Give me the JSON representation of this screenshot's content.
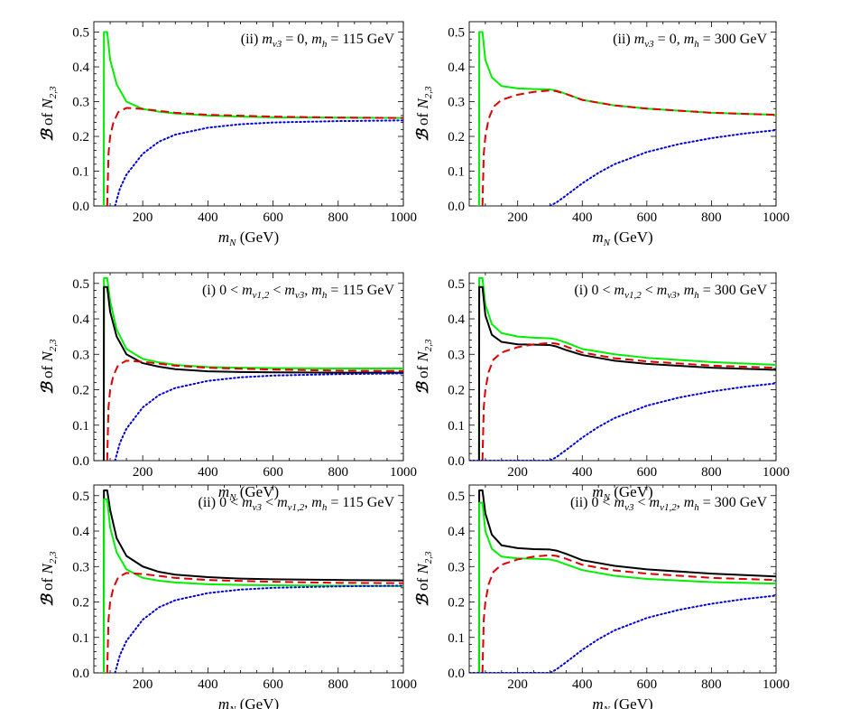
{
  "chart_data": [
    {
      "type": "line",
      "label_prefix": "(ii)",
      "annotation_math": "m_{ν3} = 0,",
      "annotation_mass": "m_h = 115 GeV",
      "xlabel": "m_N (GeV)",
      "ylabel": "ℬ of N_{2,3}",
      "xlim": [
        50,
        1000
      ],
      "ylim": [
        0,
        0.53
      ],
      "xticks": [
        200,
        400,
        600,
        800,
        1000
      ],
      "yticks": [
        0.0,
        0.1,
        0.2,
        0.3,
        0.4,
        0.5
      ],
      "series": [
        {
          "name": "green",
          "color": "#00ee00",
          "style": "solid",
          "x": [
            80.4,
            81,
            85,
            91,
            100,
            120,
            150,
            200,
            250,
            300,
            400,
            500,
            600,
            800,
            1000
          ],
          "y": [
            0,
            0.5,
            0.5,
            0.5,
            0.42,
            0.35,
            0.3,
            0.279,
            0.271,
            0.266,
            0.26,
            0.257,
            0.255,
            0.254,
            0.253
          ]
        },
        {
          "name": "red-dashed",
          "color": "#dd0000",
          "style": "dashed",
          "x": [
            91,
            95,
            100,
            110,
            125,
            150,
            200,
            300,
            400,
            600,
            800,
            1000
          ],
          "y": [
            0,
            0.15,
            0.2,
            0.24,
            0.27,
            0.282,
            0.279,
            0.268,
            0.262,
            0.257,
            0.254,
            0.253
          ]
        },
        {
          "name": "blue-dotted",
          "color": "#0000dd",
          "style": "dotted",
          "x": [
            115,
            130,
            150,
            200,
            250,
            300,
            400,
            500,
            600,
            800,
            1000
          ],
          "y": [
            0,
            0.05,
            0.09,
            0.15,
            0.185,
            0.205,
            0.225,
            0.235,
            0.24,
            0.244,
            0.246
          ]
        }
      ]
    },
    {
      "type": "line",
      "label_prefix": "(ii)",
      "annotation_math": "m_{ν3} = 0,",
      "annotation_mass": "m_h = 300 GeV",
      "xlabel": "m_N (GeV)",
      "ylabel": "ℬ of N_{2,3}",
      "xlim": [
        50,
        1000
      ],
      "ylim": [
        0,
        0.53
      ],
      "xticks": [
        200,
        400,
        600,
        800,
        1000
      ],
      "yticks": [
        0.0,
        0.1,
        0.2,
        0.3,
        0.4,
        0.5
      ],
      "series": [
        {
          "name": "green",
          "color": "#00ee00",
          "style": "solid",
          "x": [
            80.4,
            81,
            85,
            91,
            100,
            120,
            150,
            200,
            250,
            300,
            320,
            350,
            400,
            500,
            600,
            800,
            1000
          ],
          "y": [
            0,
            0.5,
            0.5,
            0.5,
            0.42,
            0.37,
            0.345,
            0.338,
            0.336,
            0.335,
            0.332,
            0.322,
            0.305,
            0.289,
            0.28,
            0.268,
            0.262
          ]
        },
        {
          "name": "red-dashed",
          "color": "#dd0000",
          "style": "dashed",
          "x": [
            91,
            95,
            100,
            110,
            125,
            150,
            200,
            250,
            300,
            320,
            350,
            400,
            500,
            600,
            800,
            1000
          ],
          "y": [
            0,
            0.15,
            0.2,
            0.25,
            0.285,
            0.305,
            0.32,
            0.328,
            0.332,
            0.33,
            0.322,
            0.305,
            0.289,
            0.28,
            0.268,
            0.262
          ]
        },
        {
          "name": "blue-dotted",
          "color": "#0000dd",
          "style": "dotted",
          "x": [
            300,
            320,
            350,
            400,
            450,
            500,
            600,
            700,
            800,
            900,
            1000
          ],
          "y": [
            0,
            0.01,
            0.03,
            0.065,
            0.095,
            0.12,
            0.155,
            0.178,
            0.195,
            0.208,
            0.218
          ]
        }
      ]
    },
    {
      "type": "line",
      "label_prefix": "(i)",
      "annotation_math": "0 < m_{ν1,2} < m_{ν3},",
      "annotation_mass": "m_h = 115 GeV",
      "xlabel": "m_N (GeV)",
      "ylabel": "ℬ of N_{2,3}",
      "xlim": [
        50,
        1000
      ],
      "ylim": [
        0,
        0.53
      ],
      "xticks": [
        200,
        400,
        600,
        800,
        1000
      ],
      "yticks": [
        0.0,
        0.1,
        0.2,
        0.3,
        0.4,
        0.5
      ],
      "series": [
        {
          "name": "green",
          "color": "#00ee00",
          "style": "solid",
          "x": [
            80.4,
            81,
            85,
            91,
            100,
            120,
            150,
            200,
            250,
            300,
            400,
            500,
            600,
            800,
            1000
          ],
          "y": [
            0,
            0.515,
            0.515,
            0.515,
            0.45,
            0.37,
            0.315,
            0.287,
            0.277,
            0.27,
            0.264,
            0.262,
            0.261,
            0.26,
            0.26
          ]
        },
        {
          "name": "black",
          "color": "#000000",
          "style": "solid",
          "x": [
            80.4,
            81,
            85,
            91,
            100,
            120,
            150,
            200,
            250,
            300,
            400,
            500,
            600,
            800,
            1000
          ],
          "y": [
            0,
            0.49,
            0.49,
            0.49,
            0.42,
            0.35,
            0.3,
            0.275,
            0.265,
            0.258,
            0.252,
            0.25,
            0.249,
            0.248,
            0.248
          ]
        },
        {
          "name": "red-dashed",
          "color": "#dd0000",
          "style": "dashed",
          "x": [
            91,
            95,
            100,
            110,
            125,
            150,
            200,
            300,
            400,
            600,
            800,
            1000
          ],
          "y": [
            0,
            0.15,
            0.2,
            0.24,
            0.27,
            0.282,
            0.279,
            0.268,
            0.262,
            0.257,
            0.254,
            0.253
          ]
        },
        {
          "name": "blue-dotted",
          "color": "#0000dd",
          "style": "dotted",
          "x": [
            115,
            130,
            150,
            200,
            250,
            300,
            400,
            500,
            600,
            800,
            1000
          ],
          "y": [
            0,
            0.05,
            0.09,
            0.15,
            0.185,
            0.205,
            0.225,
            0.235,
            0.24,
            0.244,
            0.246
          ]
        }
      ]
    },
    {
      "type": "line",
      "label_prefix": "(i)",
      "annotation_math": "0 < m_{ν1,2} < m_{ν3},",
      "annotation_mass": "m_h = 300 GeV",
      "xlabel": "m_N (GeV)",
      "ylabel": "ℬ of N_{2,3}",
      "xlim": [
        50,
        1000
      ],
      "ylim": [
        0,
        0.53
      ],
      "xticks": [
        200,
        400,
        600,
        800,
        1000
      ],
      "yticks": [
        0.0,
        0.1,
        0.2,
        0.3,
        0.4,
        0.5
      ],
      "series": [
        {
          "name": "green",
          "color": "#00ee00",
          "style": "solid",
          "x": [
            80.4,
            81,
            85,
            91,
            100,
            120,
            150,
            200,
            250,
            300,
            320,
            350,
            400,
            500,
            600,
            800,
            1000
          ],
          "y": [
            0,
            0.515,
            0.515,
            0.515,
            0.44,
            0.385,
            0.36,
            0.35,
            0.347,
            0.345,
            0.342,
            0.333,
            0.315,
            0.3,
            0.29,
            0.278,
            0.27
          ]
        },
        {
          "name": "black",
          "color": "#000000",
          "style": "solid",
          "x": [
            80.4,
            81,
            85,
            91,
            100,
            120,
            150,
            200,
            250,
            300,
            320,
            350,
            400,
            500,
            600,
            800,
            1000
          ],
          "y": [
            0,
            0.49,
            0.49,
            0.49,
            0.41,
            0.355,
            0.335,
            0.328,
            0.327,
            0.326,
            0.322,
            0.312,
            0.298,
            0.282,
            0.273,
            0.262,
            0.256
          ]
        },
        {
          "name": "red-dashed",
          "color": "#dd0000",
          "style": "dashed",
          "x": [
            91,
            95,
            100,
            110,
            125,
            150,
            200,
            250,
            300,
            320,
            350,
            400,
            500,
            600,
            800,
            1000
          ],
          "y": [
            0,
            0.15,
            0.2,
            0.25,
            0.285,
            0.305,
            0.32,
            0.328,
            0.332,
            0.33,
            0.322,
            0.305,
            0.289,
            0.28,
            0.268,
            0.262
          ]
        },
        {
          "name": "blue-dotted",
          "color": "#0000dd",
          "style": "dotted",
          "x": [
            50,
            300,
            320,
            350,
            400,
            450,
            500,
            600,
            700,
            800,
            900,
            1000
          ],
          "y": [
            0,
            0,
            0.01,
            0.03,
            0.065,
            0.095,
            0.12,
            0.155,
            0.178,
            0.195,
            0.208,
            0.218
          ]
        }
      ]
    },
    {
      "type": "line",
      "label_prefix": "(ii)",
      "annotation_math": "0 < m_{ν3} < m_{ν1,2},",
      "annotation_mass": "m_h = 115 GeV",
      "xlabel": "m_N (GeV)",
      "ylabel": "ℬ of N_{2,3}",
      "xlim": [
        50,
        1000
      ],
      "ylim": [
        0,
        0.53
      ],
      "xticks": [
        200,
        400,
        600,
        800,
        1000
      ],
      "yticks": [
        0.0,
        0.1,
        0.2,
        0.3,
        0.4,
        0.5
      ],
      "series": [
        {
          "name": "black",
          "color": "#000000",
          "style": "solid",
          "x": [
            80.4,
            81,
            85,
            91,
            100,
            120,
            150,
            200,
            250,
            300,
            400,
            500,
            600,
            800,
            1000
          ],
          "y": [
            0,
            0.515,
            0.515,
            0.515,
            0.46,
            0.38,
            0.33,
            0.3,
            0.285,
            0.277,
            0.27,
            0.266,
            0.264,
            0.262,
            0.261
          ]
        },
        {
          "name": "green",
          "color": "#00ee00",
          "style": "solid",
          "x": [
            80.4,
            81,
            85,
            91,
            100,
            120,
            150,
            200,
            250,
            300,
            400,
            500,
            600,
            800,
            1000
          ],
          "y": [
            0,
            0.49,
            0.49,
            0.49,
            0.41,
            0.34,
            0.292,
            0.268,
            0.26,
            0.255,
            0.25,
            0.248,
            0.247,
            0.246,
            0.245
          ]
        },
        {
          "name": "red-dashed",
          "color": "#dd0000",
          "style": "dashed",
          "x": [
            91,
            95,
            100,
            110,
            125,
            150,
            200,
            300,
            400,
            600,
            800,
            1000
          ],
          "y": [
            0,
            0.15,
            0.2,
            0.24,
            0.27,
            0.282,
            0.279,
            0.268,
            0.262,
            0.257,
            0.254,
            0.253
          ]
        },
        {
          "name": "blue-dotted",
          "color": "#0000dd",
          "style": "dotted",
          "x": [
            115,
            130,
            150,
            200,
            250,
            300,
            400,
            500,
            600,
            800,
            1000
          ],
          "y": [
            0,
            0.05,
            0.09,
            0.15,
            0.185,
            0.205,
            0.225,
            0.235,
            0.24,
            0.244,
            0.246
          ]
        }
      ]
    },
    {
      "type": "line",
      "label_prefix": "(ii)",
      "annotation_math": "0 < m_{ν3} < m_{ν1,2},",
      "annotation_mass": "m_h = 300 GeV",
      "xlabel": "m_N (GeV)",
      "ylabel": "ℬ of N_{2,3}",
      "xlim": [
        50,
        1000
      ],
      "ylim": [
        0,
        0.53
      ],
      "xticks": [
        200,
        400,
        600,
        800,
        1000
      ],
      "yticks": [
        0.0,
        0.1,
        0.2,
        0.3,
        0.4,
        0.5
      ],
      "series": [
        {
          "name": "black",
          "color": "#000000",
          "style": "solid",
          "x": [
            80.4,
            81,
            85,
            91,
            100,
            120,
            150,
            200,
            250,
            300,
            320,
            350,
            400,
            500,
            600,
            800,
            1000
          ],
          "y": [
            0,
            0.515,
            0.515,
            0.515,
            0.45,
            0.39,
            0.36,
            0.352,
            0.349,
            0.348,
            0.345,
            0.336,
            0.318,
            0.302,
            0.292,
            0.28,
            0.272
          ]
        },
        {
          "name": "green",
          "color": "#00ee00",
          "style": "solid",
          "x": [
            80.4,
            81,
            85,
            91,
            100,
            120,
            150,
            200,
            250,
            300,
            320,
            350,
            400,
            500,
            600,
            800,
            1000
          ],
          "y": [
            0,
            0.48,
            0.48,
            0.48,
            0.4,
            0.35,
            0.328,
            0.323,
            0.322,
            0.32,
            0.316,
            0.306,
            0.29,
            0.274,
            0.265,
            0.256,
            0.252
          ]
        },
        {
          "name": "red-dashed",
          "color": "#dd0000",
          "style": "dashed",
          "x": [
            91,
            95,
            100,
            110,
            125,
            150,
            200,
            250,
            300,
            320,
            350,
            400,
            500,
            600,
            800,
            1000
          ],
          "y": [
            0,
            0.15,
            0.2,
            0.25,
            0.285,
            0.305,
            0.32,
            0.328,
            0.332,
            0.33,
            0.322,
            0.305,
            0.289,
            0.28,
            0.268,
            0.262
          ]
        },
        {
          "name": "blue-dotted",
          "color": "#0000dd",
          "style": "dotted",
          "x": [
            50,
            300,
            320,
            350,
            400,
            450,
            500,
            600,
            700,
            800,
            900,
            1000
          ],
          "y": [
            0,
            0,
            0.01,
            0.03,
            0.065,
            0.095,
            0.12,
            0.155,
            0.178,
            0.195,
            0.208,
            0.218
          ]
        }
      ]
    }
  ]
}
